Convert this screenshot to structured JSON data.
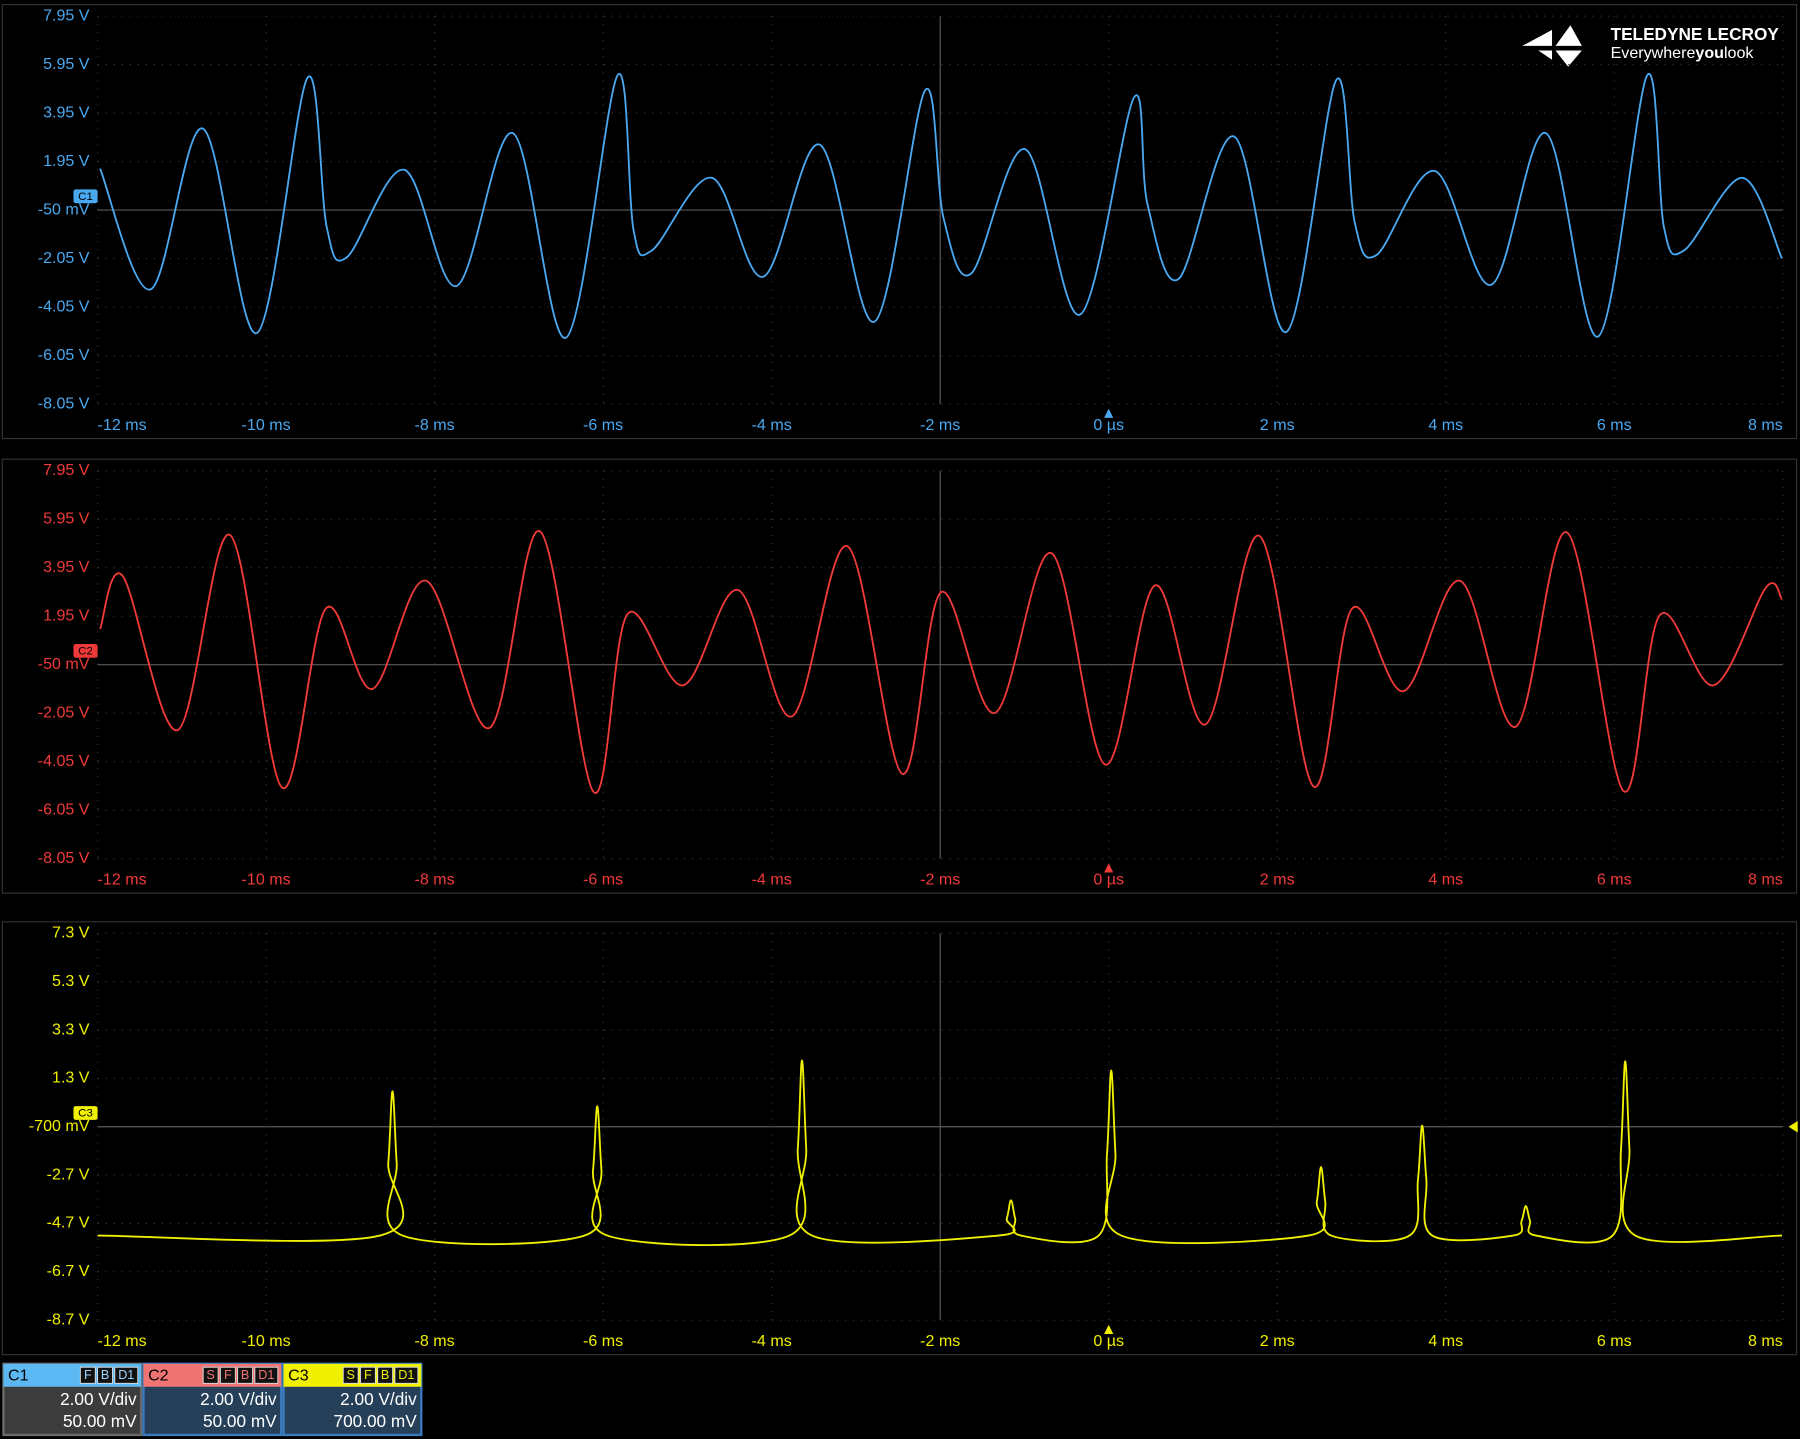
{
  "chart_data": [
    {
      "type": "line",
      "xlim": [
        -12,
        8
      ],
      "xticks": [
        {
          "value": -12,
          "label": "-12 ms"
        },
        {
          "value": -10,
          "label": "-10 ms"
        },
        {
          "value": -8,
          "label": "-8 ms"
        },
        {
          "value": -6,
          "label": "-6 ms"
        },
        {
          "value": -4,
          "label": "-4 ms"
        },
        {
          "value": -2,
          "label": "-2 ms"
        },
        {
          "value": 0,
          "label": "0 µs"
        },
        {
          "value": 2,
          "label": "2 ms"
        },
        {
          "value": 4,
          "label": "4 ms"
        },
        {
          "value": 6,
          "label": "6 ms"
        },
        {
          "value": 8,
          "label": "8 ms"
        }
      ],
      "ylim": [
        -8.05,
        7.95
      ],
      "yticks": [
        {
          "value": 7.95,
          "label": "7.95 V"
        },
        {
          "value": 5.95,
          "label": "5.95 V"
        },
        {
          "value": 3.95,
          "label": "3.95 V"
        },
        {
          "value": 1.95,
          "label": "1.95 V"
        },
        {
          "value": -0.05,
          "label": "-50 mV"
        },
        {
          "value": -2.05,
          "label": "-2.05 V"
        },
        {
          "value": -4.05,
          "label": "-4.05 V"
        },
        {
          "value": -6.05,
          "label": "-6.05 V"
        },
        {
          "value": -8.05,
          "label": "-8.05 V"
        }
      ],
      "grid": true,
      "x": [
        -11.97,
        -11.37,
        -10.75,
        -10.11,
        -9.51,
        -9.28,
        -9.04,
        -8.36,
        -7.74,
        -7.07,
        -6.44,
        -5.83,
        -5.64,
        -5.42,
        -4.71,
        -4.1,
        -3.43,
        -2.78,
        -2.18,
        -1.96,
        -1.63,
        -0.99,
        -0.34,
        0.3,
        0.46,
        0.83,
        1.49,
        2.11,
        2.7,
        2.92,
        3.18,
        3.87,
        4.54,
        5.19,
        5.81,
        6.39,
        6.59,
        6.83,
        7.52,
        7.99
      ],
      "series": [
        {
          "name": "C1",
          "color": "#4aa8f0",
          "values": [
            1.66,
            -3.32,
            3.31,
            -5.12,
            5.4,
            -0.76,
            -1.99,
            1.61,
            -3.18,
            3.12,
            -5.31,
            5.5,
            -0.86,
            -1.71,
            1.28,
            -2.8,
            2.65,
            -4.65,
            4.88,
            -0.38,
            -2.66,
            2.46,
            -4.36,
            4.59,
            0.2,
            -2.89,
            2.98,
            -5.07,
            5.31,
            -0.56,
            -1.9,
            1.56,
            -3.13,
            3.12,
            -5.26,
            5.5,
            -0.76,
            -1.71,
            1.28,
            -2.04
          ]
        }
      ]
    },
    {
      "type": "line",
      "xlim": [
        -12,
        8
      ],
      "xticks": [
        {
          "value": -12,
          "label": "-12 ms"
        },
        {
          "value": -10,
          "label": "-10 ms"
        },
        {
          "value": -8,
          "label": "-8 ms"
        },
        {
          "value": -6,
          "label": "-6 ms"
        },
        {
          "value": -4,
          "label": "-4 ms"
        },
        {
          "value": -2,
          "label": "-2 ms"
        },
        {
          "value": 0,
          "label": "0 µs"
        },
        {
          "value": 2,
          "label": "2 ms"
        },
        {
          "value": 4,
          "label": "4 ms"
        },
        {
          "value": 6,
          "label": "6 ms"
        },
        {
          "value": 8,
          "label": "8 ms"
        }
      ],
      "ylim": [
        -8.05,
        7.95
      ],
      "yticks": [
        {
          "value": 7.95,
          "label": "7.95 V"
        },
        {
          "value": 5.95,
          "label": "5.95 V"
        },
        {
          "value": 3.95,
          "label": "3.95 V"
        },
        {
          "value": 1.95,
          "label": "1.95 V"
        },
        {
          "value": -0.05,
          "label": "-50 mV"
        },
        {
          "value": -2.05,
          "label": "-2.05 V"
        },
        {
          "value": -4.05,
          "label": "-4.05 V"
        },
        {
          "value": -6.05,
          "label": "-6.05 V"
        },
        {
          "value": -8.05,
          "label": "-8.05 V"
        }
      ],
      "grid": true,
      "x": [
        -11.97,
        -11.7,
        -11.05,
        -10.43,
        -9.81,
        -9.29,
        -8.74,
        -8.1,
        -7.35,
        -6.75,
        -6.11,
        -5.71,
        -5.05,
        -4.4,
        -3.76,
        -3.1,
        -2.45,
        -1.99,
        -1.35,
        -0.68,
        -0.04,
        0.55,
        1.15,
        1.79,
        2.43,
        2.89,
        3.5,
        4.17,
        4.83,
        5.44,
        6.11,
        6.54,
        7.18,
        7.8,
        7.99
      ],
      "series": [
        {
          "name": "C2",
          "color": "#f03a3a",
          "values": [
            1.42,
            3.6,
            -2.75,
            5.3,
            -5.12,
            2.27,
            -1.05,
            3.41,
            -2.66,
            5.45,
            -5.31,
            2.04,
            -0.9,
            3.03,
            -2.18,
            4.83,
            -4.55,
            2.94,
            -2.04,
            4.55,
            -4.17,
            3.22,
            -2.51,
            5.26,
            -5.07,
            2.27,
            -1.14,
            3.41,
            -2.61,
            5.4,
            -5.26,
            1.99,
            -0.9,
            3.13,
            2.65
          ]
        }
      ]
    },
    {
      "type": "line",
      "xlim": [
        -12,
        8
      ],
      "xticks": [
        {
          "value": -12,
          "label": "-12 ms"
        },
        {
          "value": -10,
          "label": "-10 ms"
        },
        {
          "value": -8,
          "label": "-8 ms"
        },
        {
          "value": -6,
          "label": "-6 ms"
        },
        {
          "value": -4,
          "label": "-4 ms"
        },
        {
          "value": -2,
          "label": "-2 ms"
        },
        {
          "value": 0,
          "label": "0 µs"
        },
        {
          "value": 2,
          "label": "2 ms"
        },
        {
          "value": 4,
          "label": "4 ms"
        },
        {
          "value": 6,
          "label": "6 ms"
        },
        {
          "value": 8,
          "label": "8 ms"
        }
      ],
      "ylim": [
        -8.7,
        7.3
      ],
      "yticks": [
        {
          "value": 7.3,
          "label": "7.3 V"
        },
        {
          "value": 5.3,
          "label": "5.3 V"
        },
        {
          "value": 3.3,
          "label": "3.3 V"
        },
        {
          "value": 1.3,
          "label": "1.3 V"
        },
        {
          "value": -0.7,
          "label": "-700 mV"
        },
        {
          "value": -2.7,
          "label": "-2.7 V"
        },
        {
          "value": -4.7,
          "label": "-4.7 V"
        },
        {
          "value": -6.7,
          "label": "-6.7 V"
        },
        {
          "value": -8.7,
          "label": "-8.7 V"
        }
      ],
      "grid": true,
      "x": [
        -12,
        -8.65,
        -8.55,
        -8.5,
        -8.45,
        -8.38,
        -6.22,
        -6.12,
        -6.07,
        -6.02,
        -5.95,
        -3.79,
        -3.69,
        -3.64,
        -3.59,
        -3.52,
        -1.31,
        -1.21,
        -1.16,
        -1.11,
        -1.04,
        -0.12,
        -0.02,
        0.03,
        0.08,
        0.15,
        2.37,
        2.47,
        2.52,
        2.57,
        2.64,
        3.57,
        3.67,
        3.72,
        3.77,
        3.84,
        4.8,
        4.9,
        4.95,
        5.0,
        5.07,
        5.98,
        6.08,
        6.13,
        6.18,
        6.25,
        7.99
      ],
      "series": [
        {
          "name": "C3",
          "color": "#f0f000",
          "values": [
            -5.2,
            -5.2,
            -2.2,
            0.77,
            -2.2,
            -5.2,
            -5.2,
            -2.5,
            0.15,
            -2.5,
            -5.2,
            -5.2,
            -1.6,
            2.05,
            -1.6,
            -5.2,
            -5.2,
            -4.5,
            -3.74,
            -4.5,
            -5.2,
            -5.2,
            -1.8,
            1.63,
            -1.8,
            -5.2,
            -5.2,
            -3.8,
            -2.36,
            -3.8,
            -5.2,
            -5.2,
            -2.9,
            -0.65,
            -2.9,
            -5.2,
            -5.2,
            -4.6,
            -3.98,
            -4.6,
            -5.2,
            -5.2,
            -1.6,
            2.01,
            -1.6,
            -5.2,
            -5.2
          ]
        }
      ]
    }
  ],
  "logo": {
    "brand": "TELEDYNE LECROY",
    "slogan_pre": "Everywhere",
    "slogan_bold": "you",
    "slogan_post": "look"
  },
  "channels": [
    {
      "label": "C1",
      "flags": [
        "F",
        "B",
        "D1"
      ],
      "scale": "2.00 V/div",
      "offset": "50.00 mV"
    },
    {
      "label": "C2",
      "flags": [
        "S",
        "F",
        "B",
        "D1"
      ],
      "scale": "2.00 V/div",
      "offset": "50.00 mV"
    },
    {
      "label": "C3",
      "flags": [
        "S",
        "F",
        "B",
        "D1"
      ],
      "scale": "2.00 V/div",
      "offset": "700.00 mV"
    }
  ]
}
